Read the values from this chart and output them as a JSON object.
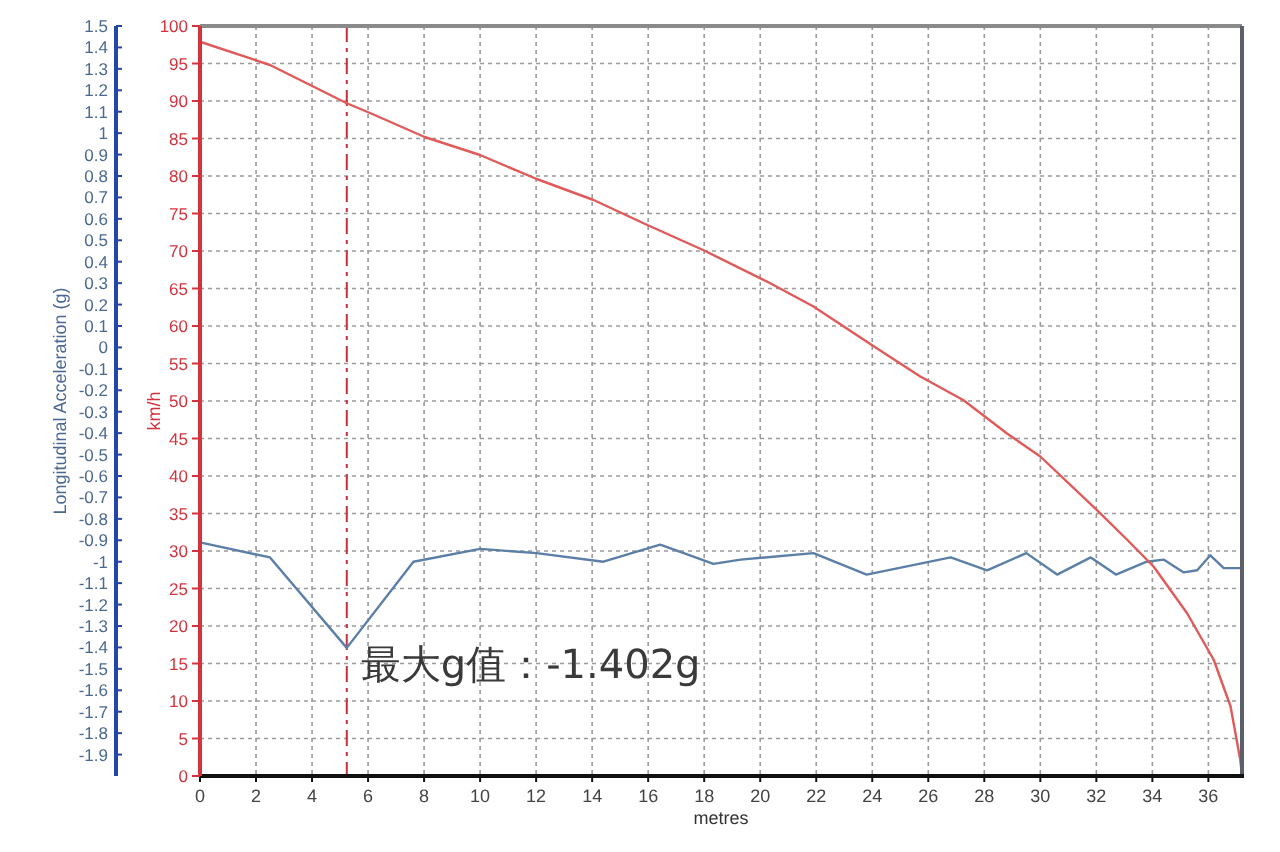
{
  "chart_data": {
    "type": "line",
    "xlabel": "metres",
    "ylabel": "Longitudinal Acceleration (g)",
    "y2label": "km/h",
    "xlim": [
      0,
      37.2
    ],
    "xticks": [
      0,
      2,
      4,
      6,
      8,
      10,
      12,
      14,
      16,
      18,
      20,
      22,
      24,
      26,
      28,
      30,
      32,
      34,
      36
    ],
    "ylim": [
      -2,
      1.5
    ],
    "yticks": [
      1.5,
      1.4,
      1.3,
      1.2,
      1.1,
      1,
      0.9,
      0.8,
      0.7,
      0.6,
      0.5,
      0.4,
      0.3,
      0.2,
      0.1,
      0,
      -0.1,
      -0.2,
      -0.3,
      -0.4,
      -0.5,
      -0.6,
      -0.7,
      -0.8,
      -0.9,
      -1,
      -1.1,
      -1.2,
      -1.3,
      -1.4,
      -1.5,
      -1.6,
      -1.7,
      -1.8,
      -1.9
    ],
    "y2lim": [
      0,
      100
    ],
    "y2ticks": [
      0,
      5,
      10,
      15,
      20,
      25,
      30,
      35,
      40,
      45,
      50,
      55,
      60,
      65,
      70,
      75,
      80,
      85,
      90,
      95,
      100
    ],
    "grid": true,
    "series": [
      {
        "color": "#5b7fa6",
        "axis": "y",
        "x": [
          0,
          2.5,
          5.24,
          7.62,
          10,
          12.02,
          14.4,
          16.43,
          18.33,
          19.3,
          21.9,
          23.8,
          26.8,
          28.1,
          29.5,
          30.6,
          31.8,
          32.7,
          33.8,
          34.4,
          35.12,
          35.6,
          36.07,
          36.55,
          37.14
        ],
        "values": [
          -0.91,
          -0.98,
          -1.402,
          -1.0,
          -0.94,
          -0.96,
          -1.0,
          -0.92,
          -1.01,
          -0.99,
          -0.96,
          -1.06,
          -0.98,
          -1.04,
          -0.96,
          -1.06,
          -0.98,
          -1.06,
          -1.0,
          -0.99,
          -1.05,
          -1.04,
          -0.97,
          -1.03,
          -1.03
        ]
      },
      {
        "color": "#e05a5a",
        "axis": "y2",
        "x": [
          0,
          2.5,
          5.24,
          6.07,
          8.02,
          10,
          12.02,
          14.05,
          15.95,
          17.98,
          20.36,
          21.9,
          24.05,
          25.7,
          27.26,
          28.8,
          30,
          31.9,
          33.1,
          34.05,
          35.24,
          36.19,
          36.79,
          37.14,
          37.2
        ],
        "values": [
          97.9,
          94.8,
          89.7,
          88.4,
          85.2,
          82.8,
          79.6,
          76.8,
          73.5,
          70.1,
          65.7,
          62.6,
          57.3,
          53.3,
          50.1,
          45.7,
          42.6,
          35.9,
          31.5,
          27.9,
          21.7,
          15.5,
          9.3,
          2.1,
          0
        ]
      }
    ],
    "ref_lines": [
      {
        "axis": "x",
        "value": 5.24,
        "color": "#c8303c",
        "line_style": "dashed"
      }
    ],
    "annotations": [
      {
        "text": "最大g值：-1.402g",
        "x": 5.24,
        "y": -1.402
      }
    ]
  }
}
